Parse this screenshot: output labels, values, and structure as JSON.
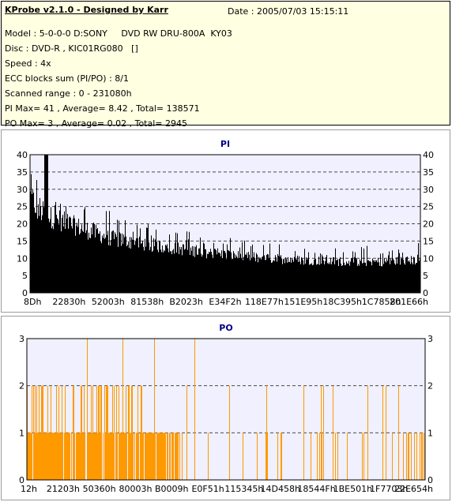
{
  "app_title": "KProbe v2.1.0 - Designed by Karr",
  "date": "Date : 2005/07/03 15:15:11",
  "info_lines": [
    "Model : 5-0-0-0 D:SONY     DVD RW DRU-800A  KY03",
    "Disc : DVD-R , KIC01RG080   []",
    "Speed : 4x",
    "ECC blocks sum (PI/PO) : 8/1",
    "Scanned range : 0 - 231080h",
    "PI Max= 41 , Average= 8.42 , Total= 138571",
    "PO Max= 3 , Average= 0.02 , Total= 2945"
  ],
  "colors": {
    "pi": "#000000",
    "po": "#ff9900",
    "plot_bg": "#f0f0ff",
    "grid": "#4a4a4a",
    "info_bg": "#ffffe1"
  },
  "chart_data": [
    {
      "type": "bar",
      "title": "PI",
      "x_tick_labels": [
        "8Dh",
        "22830h",
        "52003h",
        "81538h",
        "B2023h",
        "E34F2h",
        "118E77h",
        "151E95h",
        "18C395h",
        "1C7858h",
        "201E66h"
      ],
      "x_range": [
        0,
        2296448
      ],
      "ylim": [
        0,
        40
      ],
      "y_ticks": [
        0,
        5,
        10,
        15,
        20,
        25,
        30,
        35,
        40
      ],
      "grid": "horizontal dashed",
      "profile_x_fraction": [
        0.0,
        0.01,
        0.02,
        0.05,
        0.1,
        0.15,
        0.2,
        0.3,
        0.4,
        0.5,
        0.6,
        0.7,
        0.8,
        0.9,
        1.0
      ],
      "profile_typical": [
        28,
        26,
        24,
        22,
        20,
        18,
        16,
        14,
        12.5,
        11,
        10,
        9.5,
        9,
        9,
        9.5
      ],
      "profile_max": [
        38,
        36,
        33,
        30,
        28,
        26,
        24,
        20,
        18,
        16,
        15,
        14,
        13.5,
        14,
        15
      ],
      "max_value": 41,
      "average": 8.42
    },
    {
      "type": "bar",
      "title": "PO",
      "x_tick_labels": [
        "12h",
        "21203h",
        "50360h",
        "80003h",
        "B0009h",
        "E0F51h",
        "115345h",
        "14D458h",
        "18544Fh",
        "1BE501h",
        "1F7703h",
        "22E654h"
      ],
      "x_range": [
        0,
        2293332
      ],
      "ylim": [
        0,
        3
      ],
      "y_ticks": [
        0,
        1,
        2,
        3
      ],
      "grid": "horizontal dashed",
      "spikes_value_3_at": [
        0.15,
        0.24,
        0.32,
        0.42
      ],
      "dense_region_end_fraction": 0.38,
      "max_value": 3,
      "average": 0.02
    }
  ]
}
